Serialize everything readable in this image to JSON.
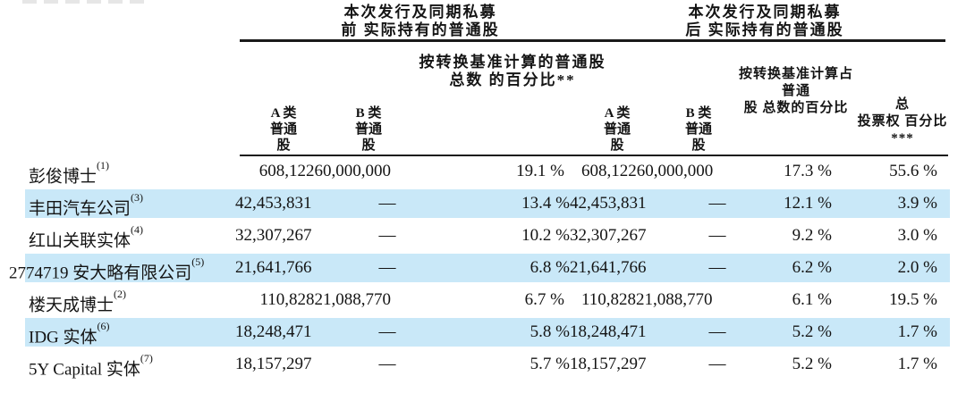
{
  "colors": {
    "highlight": "#c9e8f8",
    "rule": "#1a1a1a",
    "ink": "#141414"
  },
  "header": {
    "pre_group": "本次发行及同期私募\n前 实际持有的普通股",
    "post_group": "本次发行及同期私募\n后 实际持有的普通股",
    "pre_pct": "按转换基准计算的普通股\n总数 的百分比**",
    "post_pct": "按转换基准计算占\n普通\n股 总数的百分比",
    "voting": "总\n投票权 百分比\n***",
    "class_a_pre": "A 类\n普通\n股",
    "class_b_pre": "B 类\n普通\n股",
    "class_a_post": "A 类\n普通\n股",
    "class_b_post": "B 类\n普通\n股"
  },
  "rows": [
    {
      "name": "彭俊博士",
      "sup": "(1)",
      "a_pre": "608,12260,000,000",
      "b_pre": "",
      "pct_pre": "19.1 %",
      "a_post": "608,12260,000,000",
      "b_post": "",
      "pct_post": "17.3 %",
      "voting": "55.6 %"
    },
    {
      "name": "丰田汽车公司",
      "sup": "(3)",
      "a_pre": "42,453,831",
      "b_pre": "—",
      "pct_pre": "13.4 %",
      "a_post": "42,453,831",
      "b_post": "—",
      "pct_post": "12.1 %",
      "voting": "3.9 %"
    },
    {
      "name": "红山关联实体",
      "sup": "(4)",
      "a_pre": "32,307,267",
      "b_pre": "—",
      "pct_pre": "10.2 %",
      "a_post": "32,307,267",
      "b_post": "—",
      "pct_post": "9.2 %",
      "voting": "3.0 %"
    },
    {
      "name": "2774719 安大略有限公司",
      "sup": "(5)",
      "a_pre": "21,641,766",
      "b_pre": "—",
      "pct_pre": "6.8 %",
      "a_post": "21,641,766",
      "b_post": "—",
      "pct_post": "6.2 %",
      "voting": "2.0 %"
    },
    {
      "name": "楼天成博士",
      "sup": "(2)",
      "a_pre": "110,82821,088,770",
      "b_pre": "",
      "pct_pre": "6.7 %",
      "a_post": "110,82821,088,770",
      "b_post": "",
      "pct_post": "6.1 %",
      "voting": "19.5 %"
    },
    {
      "name": "IDG 实体",
      "sup": "(6)",
      "a_pre": "18,248,471",
      "b_pre": "—",
      "pct_pre": "5.8 %",
      "a_post": "18,248,471",
      "b_post": "—",
      "pct_post": "5.2 %",
      "voting": "1.7 %"
    },
    {
      "name": "5Y Capital 实体",
      "sup": "(7)",
      "a_pre": "18,157,297",
      "b_pre": "—",
      "pct_pre": "5.7 %",
      "a_post": "18,157,297",
      "b_post": "—",
      "pct_post": "5.2 %",
      "voting": "1.7 %"
    }
  ]
}
